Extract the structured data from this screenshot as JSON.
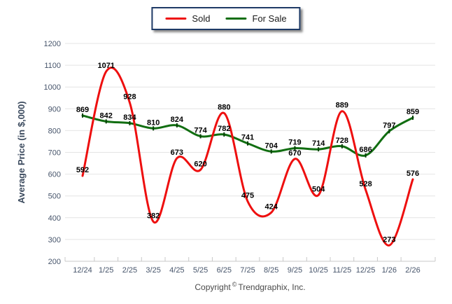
{
  "chart_data": {
    "type": "line",
    "title": "",
    "xlabel": "",
    "ylabel": "Average Price (in $,000)",
    "ylim": [
      200,
      1200
    ],
    "ytick_step": 100,
    "grid": true,
    "legend_position": "top-center",
    "categories": [
      "12/24",
      "1/25",
      "2/25",
      "3/25",
      "4/25",
      "5/25",
      "6/25",
      "7/25",
      "8/25",
      "9/25",
      "10/25",
      "11/25",
      "12/25",
      "1/26",
      "2/26"
    ],
    "series": [
      {
        "name": "For Sale",
        "color": "#116e11",
        "marker": "dash",
        "marker_color": "#064006",
        "values": [
          869,
          842,
          834,
          810,
          824,
          774,
          782,
          741,
          704,
          719,
          714,
          728,
          686,
          797,
          859
        ]
      },
      {
        "name": "Sold",
        "color": "#ee0f0f",
        "marker": "none",
        "marker_color": "#aa0000",
        "values": [
          592,
          1071,
          928,
          382,
          673,
          620,
          880,
          475,
          424,
          670,
          504,
          889,
          528,
          273,
          576
        ]
      }
    ]
  },
  "colors": {
    "grid_line": "#e4e4e4",
    "axis_line": "#c8c8c8",
    "tick_label": "#47556b",
    "axis_title": "#3b4a5e",
    "data_label": "#000000",
    "legend_border": "#1e3a66"
  },
  "footer": {
    "copyright_prefix": "Copyright",
    "copyright_symbol": "©",
    "copyright_suffix": "Trendgraphix, Inc."
  }
}
